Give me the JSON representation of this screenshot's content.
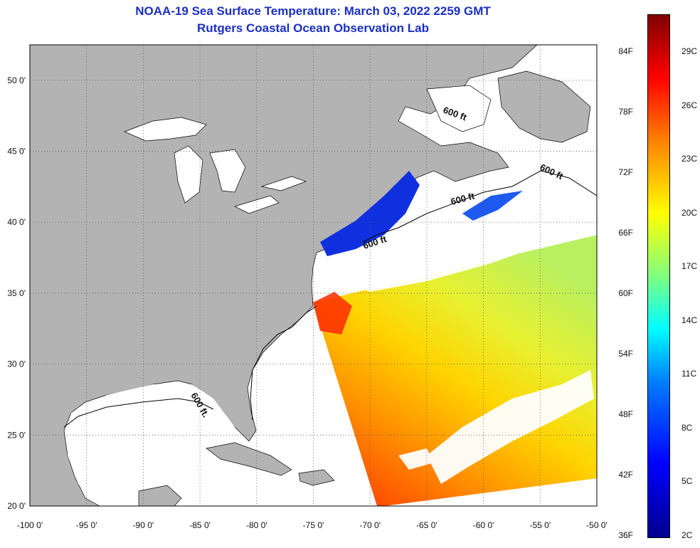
{
  "title": {
    "line1": "NOAA-19 Sea Surface Temperature:  March 03, 2022 2259 GMT",
    "line2": "Rutgers Coastal Ocean Observation Lab"
  },
  "map": {
    "lon_range": [
      -100,
      -50
    ],
    "lat_range": [
      20,
      52.5
    ],
    "lon_labels": [
      "-100 0'",
      "-95 0'",
      "-90 0'",
      "-85 0'",
      "-80 0'",
      "-75 0'",
      "-70 0'",
      "-65 0'",
      "-60 0'",
      "-55 0'",
      "-50 0'"
    ],
    "lat_labels": [
      "50 0'",
      "45 0'",
      "40 0'",
      "35 0'",
      "30 0'",
      "25 0'",
      "20 0'"
    ],
    "contour_labels": [
      "600 ft",
      "600 ft",
      "600 ft",
      "600 ft",
      "600 ft."
    ],
    "colors": {
      "land": "#b3b3b3",
      "ocean_nodata": "#ffffff",
      "grid": "#555555"
    }
  },
  "colorbar": {
    "fahrenheit_labels": [
      "84F",
      "78F",
      "72F",
      "66F",
      "60F",
      "54F",
      "48F",
      "42F",
      "36F"
    ],
    "celsius_labels": [
      "29C",
      "26C",
      "23C",
      "20C",
      "17C",
      "14C",
      "11C",
      "8C",
      "5C",
      "2C"
    ],
    "colors": [
      "#00008f",
      "#0000ff",
      "#0080ff",
      "#00ffff",
      "#80ff80",
      "#ffff00",
      "#ff8000",
      "#ff0000",
      "#800000"
    ]
  }
}
